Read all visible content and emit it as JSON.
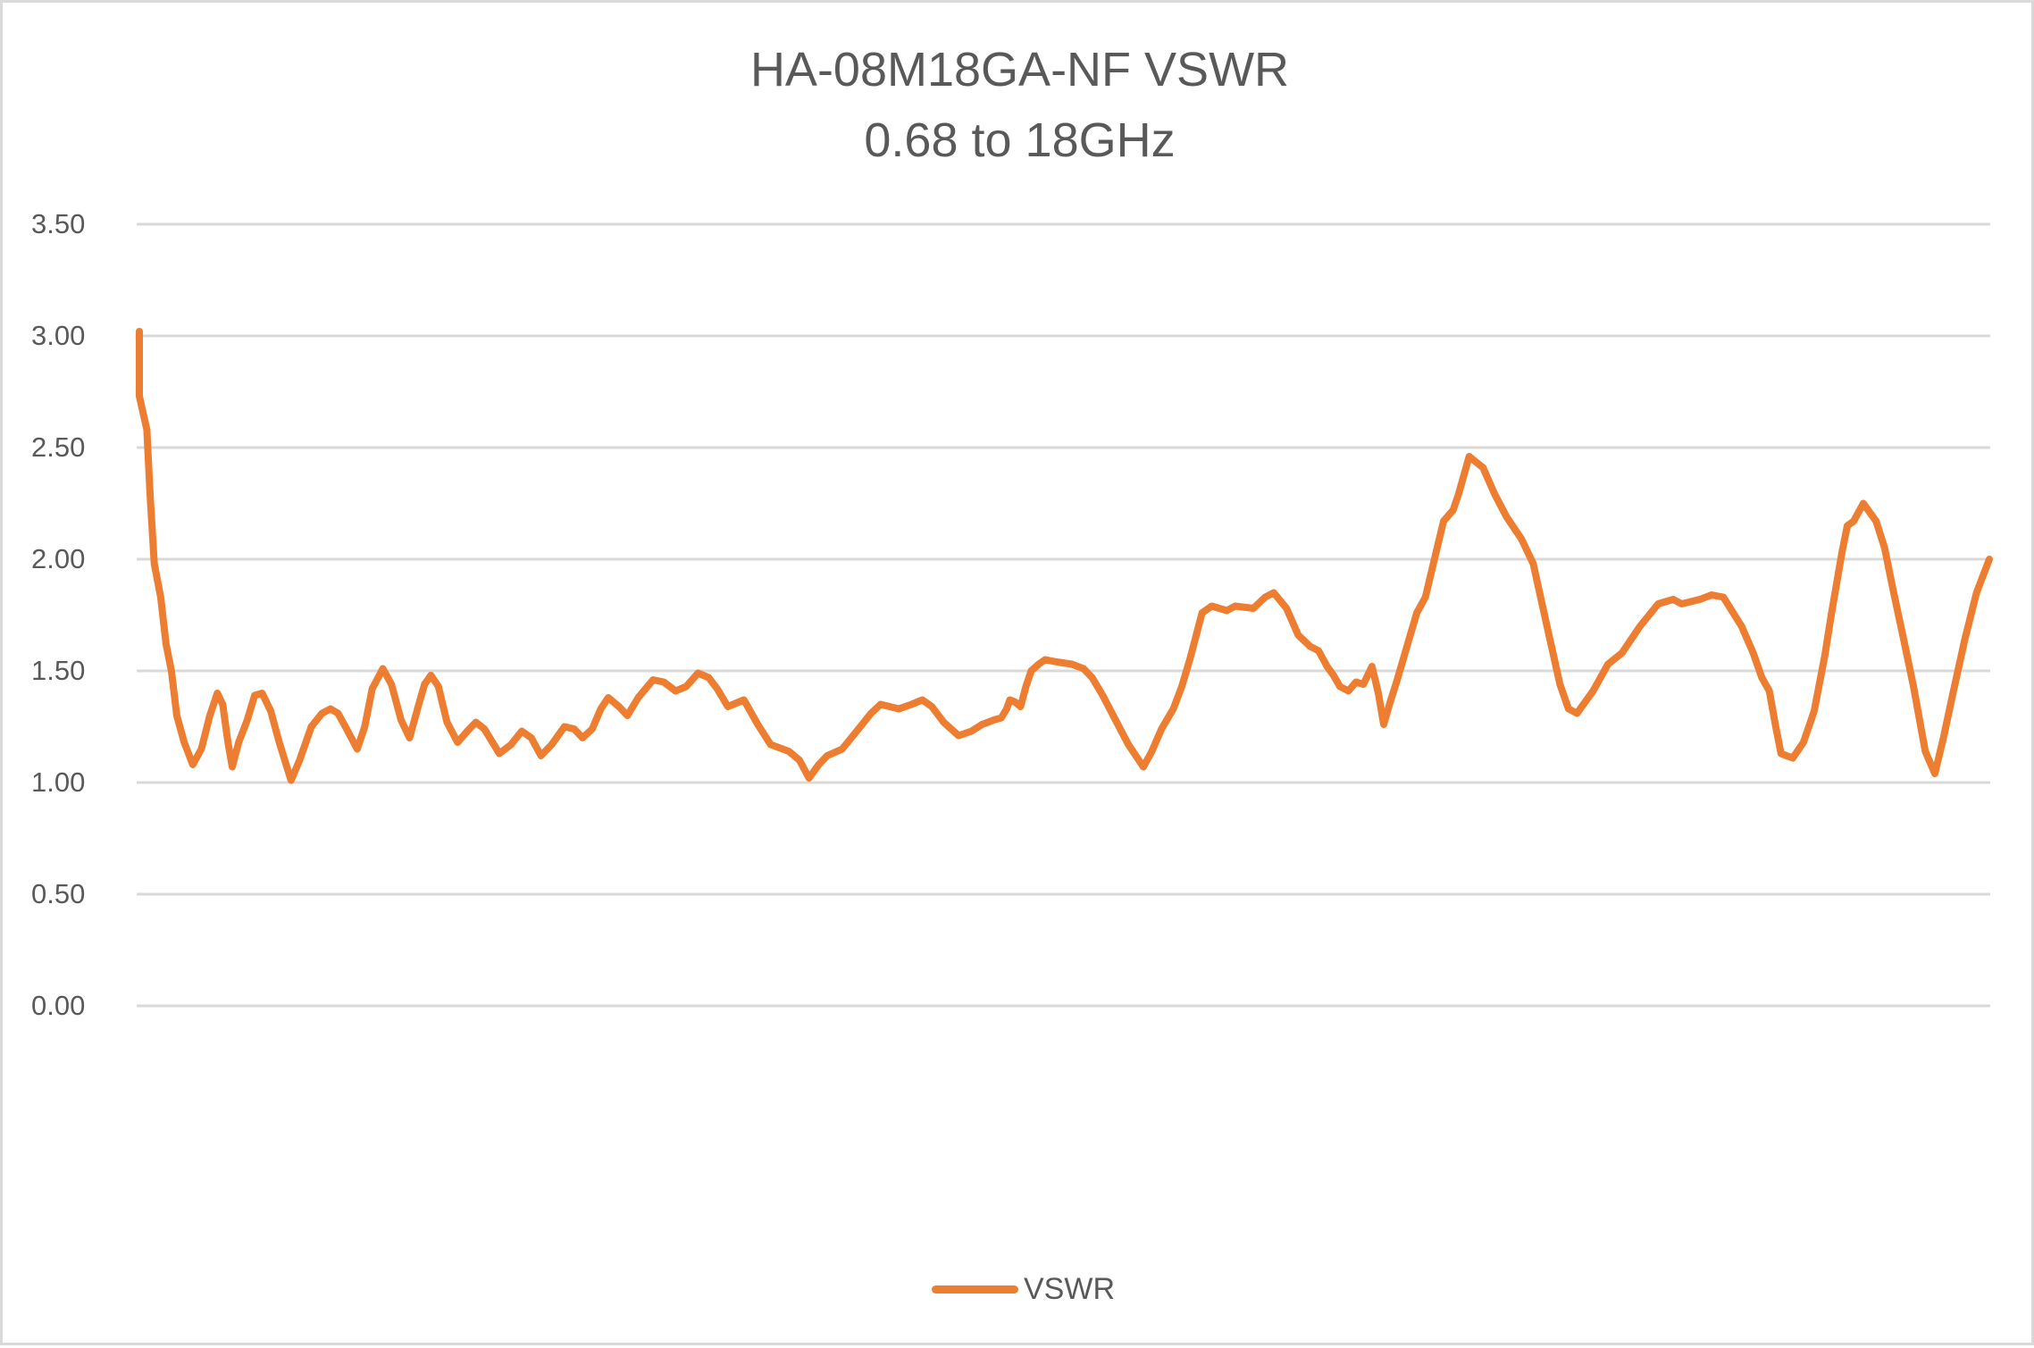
{
  "chart_data": {
    "type": "line",
    "title": "HA-08M18GA-NF VSWR",
    "subtitle": "0.68 to 18GHz",
    "xlabel": "",
    "ylabel": "",
    "x_unit": "GHz",
    "xlim": [
      0.68,
      18.0
    ],
    "ylim": [
      0.0,
      3.5
    ],
    "yticks": [
      0.0,
      0.5,
      1.0,
      1.5,
      2.0,
      2.5,
      3.0,
      3.5
    ],
    "ytick_labels": [
      "0.00",
      "0.50",
      "1.00",
      "1.50",
      "2.00",
      "2.50",
      "3.00",
      "3.50"
    ],
    "xticks_visible": false,
    "grid": {
      "horizontal": true,
      "vertical": false,
      "color": "#d9d9d9"
    },
    "legend": {
      "position": "bottom",
      "entries": [
        "VSWR"
      ]
    },
    "series": [
      {
        "name": "VSWR",
        "color": "#ed7d31",
        "points": [
          [
            0.68,
            3.02
          ],
          [
            0.68,
            2.73
          ],
          [
            0.75,
            2.58
          ],
          [
            0.78,
            2.29
          ],
          [
            0.82,
            1.98
          ],
          [
            0.88,
            1.83
          ],
          [
            0.93,
            1.62
          ],
          [
            0.98,
            1.5
          ],
          [
            1.03,
            1.3
          ],
          [
            1.1,
            1.18
          ],
          [
            1.18,
            1.08
          ],
          [
            1.26,
            1.15
          ],
          [
            1.34,
            1.3
          ],
          [
            1.41,
            1.4
          ],
          [
            1.46,
            1.35
          ],
          [
            1.51,
            1.18
          ],
          [
            1.55,
            1.07
          ],
          [
            1.61,
            1.18
          ],
          [
            1.69,
            1.28
          ],
          [
            1.76,
            1.39
          ],
          [
            1.83,
            1.4
          ],
          [
            1.91,
            1.32
          ],
          [
            1.99,
            1.18
          ],
          [
            2.1,
            1.01
          ],
          [
            2.18,
            1.1
          ],
          [
            2.29,
            1.25
          ],
          [
            2.39,
            1.31
          ],
          [
            2.47,
            1.33
          ],
          [
            2.54,
            1.31
          ],
          [
            2.62,
            1.24
          ],
          [
            2.72,
            1.15
          ],
          [
            2.79,
            1.25
          ],
          [
            2.86,
            1.42
          ],
          [
            2.96,
            1.51
          ],
          [
            3.04,
            1.44
          ],
          [
            3.13,
            1.28
          ],
          [
            3.21,
            1.2
          ],
          [
            3.29,
            1.34
          ],
          [
            3.35,
            1.44
          ],
          [
            3.41,
            1.48
          ],
          [
            3.48,
            1.43
          ],
          [
            3.56,
            1.27
          ],
          [
            3.66,
            1.18
          ],
          [
            3.75,
            1.23
          ],
          [
            3.83,
            1.27
          ],
          [
            3.91,
            1.24
          ],
          [
            4.05,
            1.13
          ],
          [
            4.16,
            1.17
          ],
          [
            4.26,
            1.23
          ],
          [
            4.35,
            1.2
          ],
          [
            4.44,
            1.12
          ],
          [
            4.54,
            1.17
          ],
          [
            4.66,
            1.25
          ],
          [
            4.75,
            1.24
          ],
          [
            4.83,
            1.2
          ],
          [
            4.92,
            1.24
          ],
          [
            5.0,
            1.33
          ],
          [
            5.07,
            1.38
          ],
          [
            5.17,
            1.34
          ],
          [
            5.25,
            1.3
          ],
          [
            5.35,
            1.38
          ],
          [
            5.49,
            1.46
          ],
          [
            5.59,
            1.45
          ],
          [
            5.7,
            1.41
          ],
          [
            5.8,
            1.43
          ],
          [
            5.91,
            1.49
          ],
          [
            6.01,
            1.47
          ],
          [
            6.09,
            1.42
          ],
          [
            6.19,
            1.34
          ],
          [
            6.34,
            1.37
          ],
          [
            6.47,
            1.26
          ],
          [
            6.59,
            1.17
          ],
          [
            6.76,
            1.14
          ],
          [
            6.86,
            1.1
          ],
          [
            6.95,
            1.02
          ],
          [
            7.04,
            1.08
          ],
          [
            7.12,
            1.12
          ],
          [
            7.26,
            1.15
          ],
          [
            7.43,
            1.25
          ],
          [
            7.53,
            1.31
          ],
          [
            7.62,
            1.35
          ],
          [
            7.79,
            1.33
          ],
          [
            7.91,
            1.35
          ],
          [
            8.01,
            1.37
          ],
          [
            8.1,
            1.34
          ],
          [
            8.21,
            1.27
          ],
          [
            8.35,
            1.21
          ],
          [
            8.47,
            1.23
          ],
          [
            8.57,
            1.26
          ],
          [
            8.68,
            1.28
          ],
          [
            8.75,
            1.29
          ],
          [
            8.8,
            1.33
          ],
          [
            8.83,
            1.37
          ],
          [
            8.88,
            1.36
          ],
          [
            8.93,
            1.34
          ],
          [
            8.98,
            1.43
          ],
          [
            9.03,
            1.5
          ],
          [
            9.1,
            1.53
          ],
          [
            9.16,
            1.55
          ],
          [
            9.27,
            1.54
          ],
          [
            9.41,
            1.53
          ],
          [
            9.52,
            1.51
          ],
          [
            9.6,
            1.47
          ],
          [
            9.7,
            1.39
          ],
          [
            9.83,
            1.27
          ],
          [
            9.94,
            1.17
          ],
          [
            10.08,
            1.07
          ],
          [
            10.16,
            1.14
          ],
          [
            10.25,
            1.24
          ],
          [
            10.36,
            1.33
          ],
          [
            10.44,
            1.43
          ],
          [
            10.52,
            1.56
          ],
          [
            10.58,
            1.67
          ],
          [
            10.63,
            1.76
          ],
          [
            10.72,
            1.79
          ],
          [
            10.86,
            1.77
          ],
          [
            10.94,
            1.79
          ],
          [
            11.11,
            1.78
          ],
          [
            11.22,
            1.83
          ],
          [
            11.3,
            1.85
          ],
          [
            11.42,
            1.78
          ],
          [
            11.53,
            1.66
          ],
          [
            11.64,
            1.61
          ],
          [
            11.72,
            1.59
          ],
          [
            11.8,
            1.52
          ],
          [
            11.86,
            1.48
          ],
          [
            11.92,
            1.43
          ],
          [
            12.0,
            1.41
          ],
          [
            12.07,
            1.45
          ],
          [
            12.14,
            1.44
          ],
          [
            12.22,
            1.52
          ],
          [
            12.28,
            1.4
          ],
          [
            12.33,
            1.26
          ],
          [
            12.39,
            1.36
          ],
          [
            12.45,
            1.45
          ],
          [
            12.53,
            1.58
          ],
          [
            12.64,
            1.76
          ],
          [
            12.72,
            1.83
          ],
          [
            12.81,
            2.01
          ],
          [
            12.89,
            2.17
          ],
          [
            12.98,
            2.22
          ],
          [
            13.03,
            2.29
          ],
          [
            13.13,
            2.46
          ],
          [
            13.26,
            2.41
          ],
          [
            13.37,
            2.29
          ],
          [
            13.48,
            2.19
          ],
          [
            13.62,
            2.09
          ],
          [
            13.73,
            1.98
          ],
          [
            13.84,
            1.74
          ],
          [
            13.98,
            1.44
          ],
          [
            14.06,
            1.33
          ],
          [
            14.14,
            1.31
          ],
          [
            14.29,
            1.41
          ],
          [
            14.43,
            1.53
          ],
          [
            14.56,
            1.58
          ],
          [
            14.73,
            1.7
          ],
          [
            14.9,
            1.8
          ],
          [
            15.04,
            1.82
          ],
          [
            15.12,
            1.8
          ],
          [
            15.29,
            1.82
          ],
          [
            15.4,
            1.84
          ],
          [
            15.51,
            1.83
          ],
          [
            15.68,
            1.7
          ],
          [
            15.79,
            1.58
          ],
          [
            15.87,
            1.47
          ],
          [
            15.94,
            1.41
          ],
          [
            16.0,
            1.25
          ],
          [
            16.05,
            1.13
          ],
          [
            16.1,
            1.12
          ],
          [
            16.16,
            1.11
          ],
          [
            16.26,
            1.18
          ],
          [
            16.36,
            1.32
          ],
          [
            16.46,
            1.57
          ],
          [
            16.52,
            1.75
          ],
          [
            16.62,
            2.03
          ],
          [
            16.67,
            2.15
          ],
          [
            16.73,
            2.17
          ],
          [
            16.82,
            2.25
          ],
          [
            16.94,
            2.17
          ],
          [
            17.02,
            2.05
          ],
          [
            17.1,
            1.86
          ],
          [
            17.19,
            1.66
          ],
          [
            17.29,
            1.43
          ],
          [
            17.4,
            1.14
          ],
          [
            17.49,
            1.04
          ],
          [
            17.57,
            1.2
          ],
          [
            17.66,
            1.4
          ],
          [
            17.77,
            1.64
          ],
          [
            17.88,
            1.85
          ],
          [
            18.0,
            2.0
          ]
        ]
      }
    ]
  },
  "legend": {
    "label": "VSWR",
    "color": "#ed7d31"
  },
  "axis": {
    "y_labels": [
      "3.50",
      "3.00",
      "2.50",
      "2.00",
      "1.50",
      "1.00",
      "0.50",
      "0.00"
    ]
  }
}
